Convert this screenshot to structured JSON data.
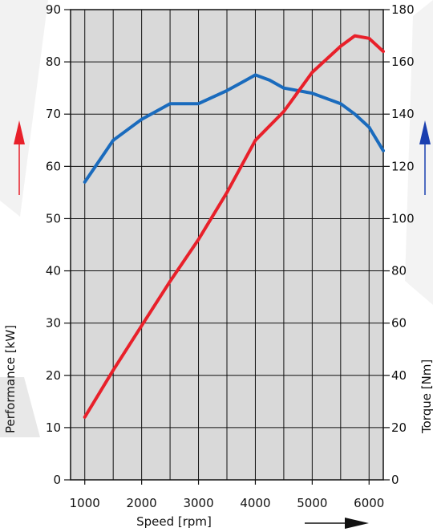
{
  "chart_data": {
    "type": "line",
    "x": [
      1000,
      1500,
      2000,
      2500,
      3000,
      3500,
      3750,
      4000,
      4250,
      4500,
      5000,
      5500,
      5750,
      6000,
      6250
    ],
    "xlabel": "Speed [rpm]",
    "xlim": [
      750,
      6250
    ],
    "xticks": [
      1000,
      2000,
      3000,
      4000,
      5000,
      6000
    ],
    "left_axis": {
      "label": "Performance [kW]",
      "ylim": [
        0,
        90
      ],
      "ticks": [
        0,
        10,
        20,
        30,
        40,
        50,
        60,
        70,
        80,
        90
      ]
    },
    "right_axis": {
      "label": "Torque [Nm]",
      "ylim": [
        0,
        180
      ],
      "ticks": [
        0,
        20,
        40,
        60,
        80,
        100,
        120,
        140,
        160,
        180
      ]
    },
    "series": [
      {
        "axis": "right",
        "color": "#1a6bbd",
        "x": [
          1000,
          1500,
          2000,
          2500,
          3000,
          3500,
          3750,
          4000,
          4250,
          4500,
          5000,
          5500,
          5750,
          6000,
          6250
        ],
        "values": [
          114,
          130,
          138,
          144,
          144,
          149,
          152,
          155,
          153,
          150,
          148,
          144,
          140,
          135,
          126
        ]
      },
      {
        "axis": "left",
        "color": "#e8202a",
        "x": [
          1000,
          1500,
          2000,
          2500,
          3000,
          3500,
          4000,
          4500,
          5000,
          5500,
          5750,
          6000,
          6250
        ],
        "values": [
          12,
          21,
          29.5,
          38,
          46,
          55,
          65,
          70.5,
          78,
          83,
          85,
          84.5,
          82
        ]
      }
    ],
    "grid": true,
    "background": "#d9d9d9"
  },
  "arrows": {
    "left_color": "#e8202a",
    "right_color": "#1a3fb0",
    "x_color": "#111111"
  }
}
